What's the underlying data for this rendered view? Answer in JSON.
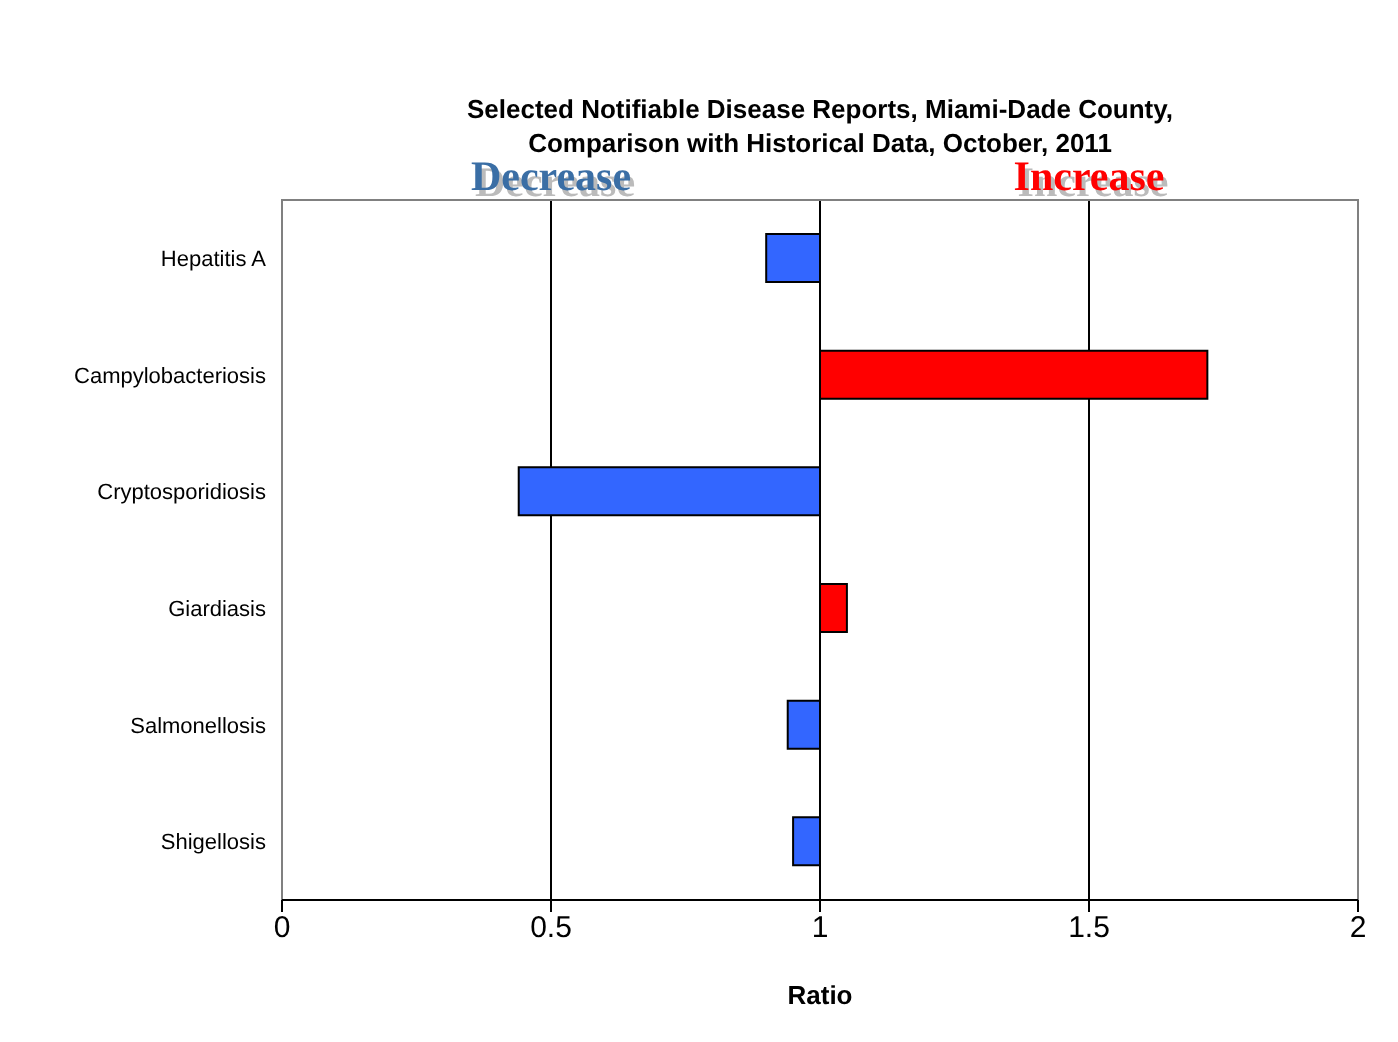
{
  "chart_data": {
    "type": "bar",
    "orientation": "horizontal",
    "title": "Selected Notifiable Disease Reports, Miami-Dade County, Comparison with Historical Data, October, 2011",
    "xlabel": "Ratio",
    "categories": [
      "Hepatitis A",
      "Campylobacteriosis",
      "Cryptosporidiosis",
      "Giardiasis",
      "Salmonellosis",
      "Shigellosis"
    ],
    "base": [
      1,
      1,
      1,
      1,
      1,
      1
    ],
    "values": [
      -0.1,
      0.72,
      -0.56,
      0.05,
      -0.06,
      -0.05
    ],
    "colors": [
      "#3366ff",
      "#ff0000",
      "#3366ff",
      "#ff0000",
      "#3366ff",
      "#3366ff"
    ],
    "xlim": [
      0,
      2
    ],
    "xticks": [
      0,
      0.5,
      1,
      1.5,
      2
    ],
    "grid": "x",
    "annotations": [
      "Decrease",
      "Increase"
    ]
  }
}
